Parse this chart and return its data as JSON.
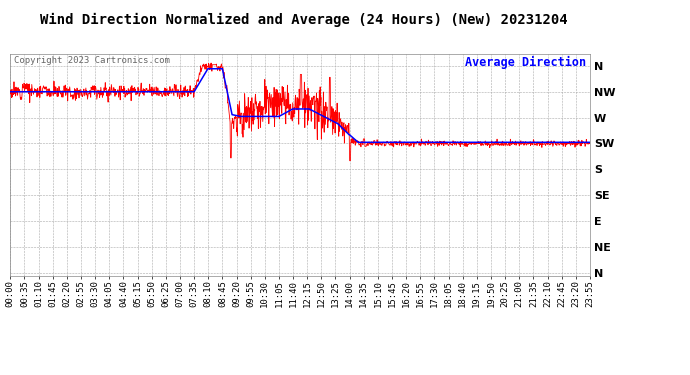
{
  "title": "Wind Direction Normalized and Average (24 Hours) (New) 20231204",
  "copyright": "Copyright 2023 Cartronics.com",
  "legend_label": "Average Direction",
  "legend_color": "blue",
  "raw_color": "red",
  "avg_color": "blue",
  "background_color": "#ffffff",
  "grid_color": "#aaaaaa",
  "ytick_labels": [
    "N",
    "NW",
    "W",
    "SW",
    "S",
    "SE",
    "E",
    "NE",
    "N"
  ],
  "ytick_values": [
    360,
    315,
    270,
    225,
    180,
    135,
    90,
    45,
    0
  ],
  "ylim": [
    -5,
    380
  ],
  "xlim": [
    0,
    1435
  ],
  "title_fontsize": 10,
  "axis_fontsize": 7,
  "copyright_fontsize": 6.5
}
